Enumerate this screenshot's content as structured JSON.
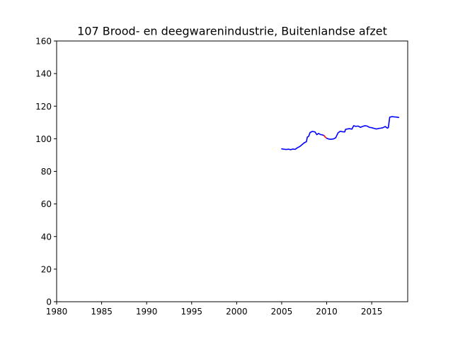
{
  "chart_data": {
    "type": "line",
    "title": "107 Brood- en deegwarenindustrie, Buitenlandse afzet",
    "xlabel": "",
    "ylabel": "",
    "xlim": [
      1980,
      2019
    ],
    "ylim": [
      0,
      160
    ],
    "xticks": [
      1980,
      1985,
      1990,
      1995,
      2000,
      2005,
      2010,
      2015
    ],
    "yticks": [
      0,
      20,
      40,
      60,
      80,
      100,
      120,
      140,
      160
    ],
    "grid": false,
    "legend": "none",
    "colors": {
      "main": "#0000ff",
      "highlight": "#ff0000"
    },
    "series": [
      {
        "color": "#0000ff",
        "points": [
          [
            2005.0,
            93.8
          ],
          [
            2005.25,
            93.6
          ],
          [
            2005.5,
            93.4
          ],
          [
            2005.75,
            93.6
          ],
          [
            2006.0,
            93.3
          ],
          [
            2006.25,
            93.7
          ],
          [
            2006.5,
            93.5
          ],
          [
            2006.75,
            94.5
          ],
          [
            2007.0,
            95.2
          ],
          [
            2007.25,
            96.3
          ],
          [
            2007.5,
            97.5
          ],
          [
            2007.75,
            98.2
          ],
          [
            2007.85,
            101.0
          ],
          [
            2008.0,
            101.5
          ],
          [
            2008.15,
            103.8
          ],
          [
            2008.4,
            104.5
          ],
          [
            2008.7,
            104.2
          ],
          [
            2008.9,
            102.5
          ],
          [
            2009.1,
            103.3
          ],
          [
            2009.3,
            102.6
          ],
          [
            2009.5,
            102.4
          ],
          [
            2009.7,
            102.0
          ]
        ]
      },
      {
        "color": "#ff0000",
        "points": [
          [
            2009.7,
            102.0
          ],
          [
            2009.85,
            101.0
          ],
          [
            2010.0,
            100.3
          ]
        ]
      },
      {
        "color": "#0000ff",
        "points": [
          [
            2010.0,
            100.3
          ],
          [
            2010.25,
            99.8
          ],
          [
            2010.5,
            99.7
          ],
          [
            2010.75,
            99.9
          ],
          [
            2011.0,
            100.6
          ],
          [
            2011.25,
            103.5
          ],
          [
            2011.5,
            104.6
          ],
          [
            2011.75,
            104.3
          ],
          [
            2012.0,
            104.2
          ],
          [
            2012.1,
            105.8
          ],
          [
            2012.3,
            106.0
          ],
          [
            2012.5,
            106.2
          ],
          [
            2012.8,
            105.9
          ],
          [
            2013.0,
            108.0
          ],
          [
            2013.25,
            107.6
          ],
          [
            2013.5,
            107.8
          ],
          [
            2013.75,
            107.0
          ],
          [
            2014.0,
            107.6
          ],
          [
            2014.25,
            108.0
          ],
          [
            2014.5,
            107.8
          ],
          [
            2014.75,
            107.0
          ],
          [
            2015.0,
            106.8
          ],
          [
            2015.25,
            106.4
          ],
          [
            2015.5,
            106.0
          ],
          [
            2015.75,
            106.3
          ],
          [
            2016.0,
            106.5
          ],
          [
            2016.25,
            106.8
          ],
          [
            2016.5,
            107.5
          ],
          [
            2016.75,
            106.5
          ],
          [
            2016.85,
            106.9
          ],
          [
            2017.0,
            113.2
          ],
          [
            2017.25,
            113.6
          ],
          [
            2017.5,
            113.4
          ],
          [
            2017.75,
            113.3
          ],
          [
            2018.0,
            113.1
          ]
        ]
      }
    ]
  }
}
